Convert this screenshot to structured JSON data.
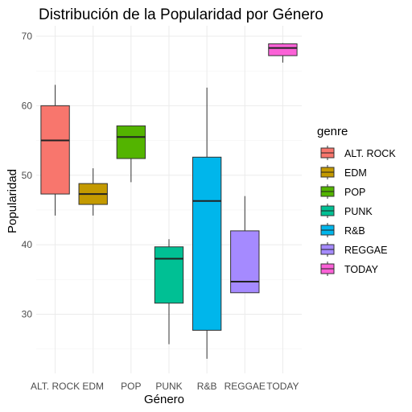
{
  "chart_data": {
    "type": "boxplot",
    "title": "Distribución de la Popularidad por Género",
    "xlabel": "Género",
    "ylabel": "Popularidad",
    "ylim": [
      21.5,
      71.5
    ],
    "yticks": [
      30,
      40,
      50,
      60,
      70
    ],
    "grid": true,
    "legend": {
      "title": "genre",
      "position": "right"
    },
    "categories": [
      "ALT. ROCK",
      "EDM",
      "POP",
      "PUNK",
      "R&B",
      "REGGAE",
      "TODAY"
    ],
    "series": [
      {
        "name": "ALT. ROCK",
        "color": "#F8766D",
        "whisker_low": 44.2,
        "q1": 47.3,
        "median": 55.0,
        "q3": 60.0,
        "whisker_high": 63.0
      },
      {
        "name": "EDM",
        "color": "#C49A00",
        "whisker_low": 44.2,
        "q1": 45.8,
        "median": 47.3,
        "q3": 48.8,
        "whisker_high": 51.0
      },
      {
        "name": "POP",
        "color": "#53B400",
        "whisker_low": 49.0,
        "q1": 52.4,
        "median": 55.5,
        "q3": 57.1,
        "whisker_high": 57.1
      },
      {
        "name": "PUNK",
        "color": "#00C094",
        "whisker_low": 25.7,
        "q1": 31.6,
        "median": 38.0,
        "q3": 39.7,
        "whisker_high": 40.8
      },
      {
        "name": "R&B",
        "color": "#00B6EB",
        "whisker_low": 23.6,
        "q1": 27.7,
        "median": 46.3,
        "q3": 52.6,
        "whisker_high": 62.6
      },
      {
        "name": "REGGAE",
        "color": "#A58AFF",
        "whisker_low": 33.1,
        "q1": 33.1,
        "median": 34.7,
        "q3": 42.0,
        "whisker_high": 47.0
      },
      {
        "name": "TODAY",
        "color": "#FB61D7",
        "whisker_low": 66.2,
        "q1": 67.2,
        "median": 68.3,
        "q3": 68.9,
        "whisker_high": 69.0
      }
    ]
  }
}
